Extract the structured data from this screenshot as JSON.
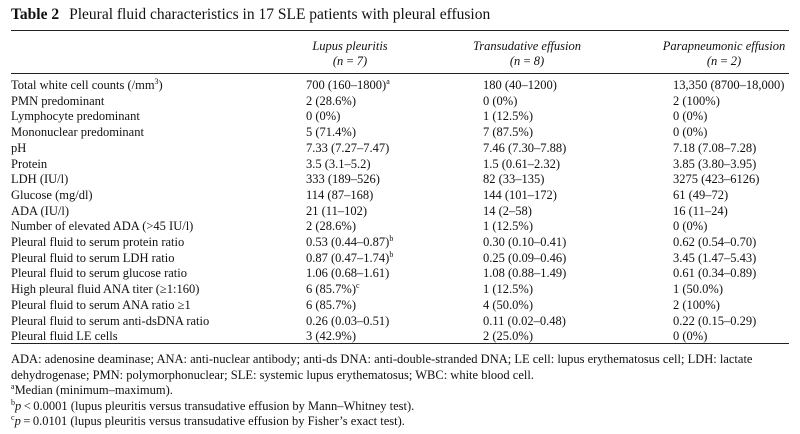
{
  "table": {
    "label": "Table 2",
    "caption": "Pleural fluid characteristics in 17 SLE patients with pleural effusion",
    "columns": [
      {
        "name": "Lupus pleuritis",
        "n": "(n = 7)"
      },
      {
        "name": "Transudative effusion",
        "n": "(n = 8)"
      },
      {
        "name": "Parapneumonic effusion",
        "n": "(n = 2)"
      }
    ],
    "rows": [
      {
        "label": "Total white cell counts (/mm",
        "label_sup": "3",
        "label_tail": ")",
        "v": [
          "700 (160–1800)",
          "180 (40–1200)",
          "13,350 (8700–18,000)"
        ],
        "sup": [
          "a",
          "",
          ""
        ]
      },
      {
        "label": "PMN predominant",
        "v": [
          "2 (28.6%)",
          "0 (0%)",
          "2 (100%)"
        ],
        "sup": [
          "",
          "",
          ""
        ]
      },
      {
        "label": "Lymphocyte predominant",
        "v": [
          "0 (0%)",
          "1 (12.5%)",
          "0 (0%)"
        ],
        "sup": [
          "",
          "",
          ""
        ]
      },
      {
        "label": "Mononuclear predominant",
        "v": [
          "5 (71.4%)",
          "7 (87.5%)",
          "0 (0%)"
        ],
        "sup": [
          "",
          "",
          ""
        ]
      },
      {
        "label": "pH",
        "v": [
          "7.33 (7.27–7.47)",
          "7.46 (7.30–7.88)",
          "7.18 (7.08–7.28)"
        ],
        "sup": [
          "",
          "",
          ""
        ]
      },
      {
        "label": "Protein",
        "v": [
          "3.5 (3.1–5.2)",
          "1.5 (0.61–2.32)",
          "3.85 (3.80–3.95)"
        ],
        "sup": [
          "",
          "",
          ""
        ]
      },
      {
        "label": "LDH (IU/l)",
        "v": [
          "333 (189–526)",
          "82 (33–135)",
          "3275 (423–6126)"
        ],
        "sup": [
          "",
          "",
          ""
        ]
      },
      {
        "label": "Glucose (mg/dl)",
        "v": [
          "114 (87–168)",
          "144 (101–172)",
          "61 (49–72)"
        ],
        "sup": [
          "",
          "",
          ""
        ]
      },
      {
        "label": "ADA (IU/l)",
        "v": [
          "21 (11–102)",
          "14 (2–58)",
          "16 (11–24)"
        ],
        "sup": [
          "",
          "",
          ""
        ]
      },
      {
        "label": "Number of elevated ADA (>45 IU/l)",
        "v": [
          "2 (28.6%)",
          "1 (12.5%)",
          "0 (0%)"
        ],
        "sup": [
          "",
          "",
          ""
        ]
      },
      {
        "label": "Pleural fluid to serum protein ratio",
        "v": [
          "0.53 (0.44–0.87)",
          "0.30 (0.10–0.41)",
          "0.62 (0.54–0.70)"
        ],
        "sup": [
          "b",
          "",
          ""
        ]
      },
      {
        "label": "Pleural fluid to serum LDH ratio",
        "v": [
          "0.87 (0.47–1.74)",
          "0.25 (0.09–0.46)",
          "3.45 (1.47–5.43)"
        ],
        "sup": [
          "b",
          "",
          ""
        ]
      },
      {
        "label": "Pleural fluid to serum glucose ratio",
        "v": [
          "1.06 (0.68–1.61)",
          "1.08 (0.88–1.49)",
          "0.61 (0.34–0.89)"
        ],
        "sup": [
          "",
          "",
          ""
        ]
      },
      {
        "label": "High pleural fluid ANA titer (≥1:160)",
        "v": [
          "6 (85.7%)",
          "1 (12.5%)",
          "1 (50.0%)"
        ],
        "sup": [
          "c",
          "",
          ""
        ]
      },
      {
        "label": "Pleural fluid to serum ANA ratio ≥1",
        "v": [
          "6 (85.7%)",
          "4 (50.0%)",
          "2 (100%)"
        ],
        "sup": [
          "",
          "",
          ""
        ]
      },
      {
        "label": "Pleural fluid to serum anti-dsDNA ratio",
        "v": [
          "0.26 (0.03–0.51)",
          "0.11 (0.02–0.48)",
          "0.22 (0.15–0.29)"
        ],
        "sup": [
          "",
          "",
          ""
        ]
      },
      {
        "label": "Pleural fluid LE cells",
        "v": [
          "3 (42.9%)",
          "2 (25.0%)",
          "0 (0%)"
        ],
        "sup": [
          "",
          "",
          ""
        ]
      }
    ],
    "footnotes": {
      "abbrev": "ADA: adenosine deaminase; ANA: anti-nuclear antibody; anti-ds DNA: anti-double-stranded DNA; LE cell: lupus erythematosus cell; LDH: lactate dehydrogenase; PMN: polymorphonuclear; SLE: systemic lupus erythematosus; WBC: white blood cell.",
      "a": {
        "mark": "a",
        "text": "Median (minimum–maximum)."
      },
      "b": {
        "mark": "b",
        "sym": "p",
        "text": " < 0.0001 (lupus pleuritis versus transudative effusion by Mann–Whitney test)."
      },
      "c": {
        "mark": "c",
        "sym": "p",
        "text": " = 0.0101 (lupus pleuritis versus transudative effusion by Fisher’s exact test)."
      }
    }
  }
}
